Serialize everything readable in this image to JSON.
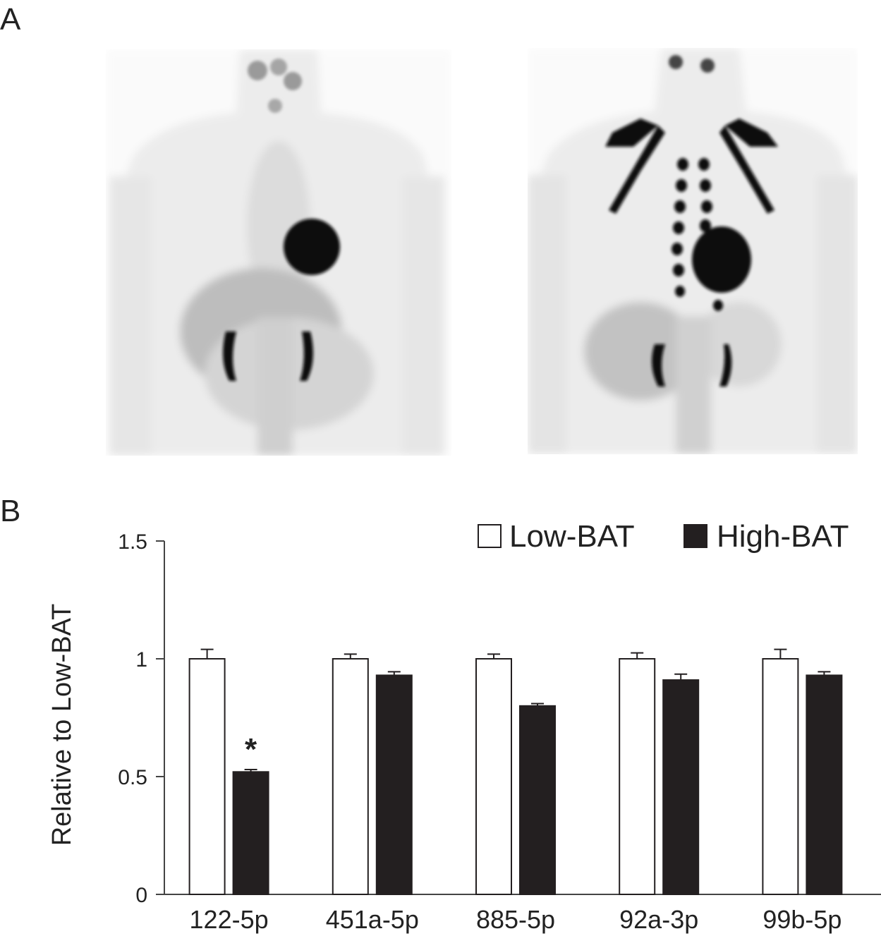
{
  "panels": {
    "a_label": "A",
    "b_label": "B"
  },
  "images": [
    {
      "name": "pet-scan-low-bat"
    },
    {
      "name": "pet-scan-high-bat"
    }
  ],
  "chart_data": {
    "type": "bar",
    "title": "",
    "xlabel": "",
    "ylabel": "Relative to Low-BAT",
    "ylim": [
      0,
      1.5
    ],
    "yticks": [
      0,
      0.5,
      1,
      1.5
    ],
    "ytick_labels": [
      "0",
      "0.5",
      "1",
      "1.5"
    ],
    "categories": [
      "122-5p",
      "451a-5p",
      "885-5p",
      "92a-3p",
      "99b-5p"
    ],
    "series": [
      {
        "name": "Low-BAT",
        "color": "#ffffff",
        "values": [
          1.0,
          1.0,
          1.0,
          1.0,
          1.0
        ],
        "errors": [
          0.04,
          0.02,
          0.02,
          0.025,
          0.04
        ]
      },
      {
        "name": "High-BAT",
        "color": "#231f20",
        "values": [
          0.52,
          0.93,
          0.8,
          0.91,
          0.93
        ],
        "errors": [
          0.01,
          0.015,
          0.01,
          0.025,
          0.015
        ]
      }
    ],
    "annotations": [
      {
        "category": "122-5p",
        "series": "High-BAT",
        "text": "*"
      }
    ],
    "legend_position": "top-right",
    "grid": false
  }
}
